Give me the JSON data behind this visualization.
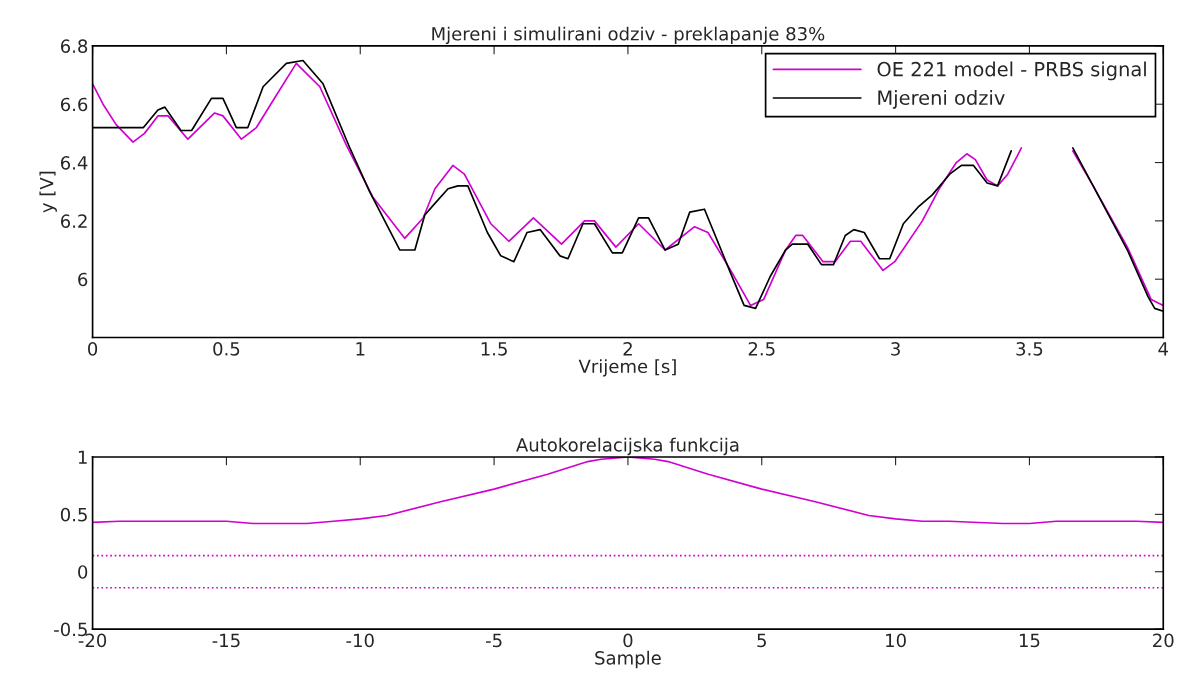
{
  "chart_data": [
    {
      "type": "line",
      "title": "Mjereni i simulirani odziv - preklapanje 83%",
      "xlabel": "Vrijeme [s]",
      "ylabel": "y [V]",
      "xlim": [
        0,
        4
      ],
      "ylim": [
        5.8,
        6.8
      ],
      "xticks": [
        0,
        0.5,
        1,
        1.5,
        2,
        2.5,
        3,
        3.5,
        4
      ],
      "yticks": [
        6,
        6.2,
        6.4,
        6.6,
        6.8
      ],
      "grid": false,
      "legend": "top right",
      "line_style": "solid",
      "series": [
        {
          "name": "OE 221 model - PRBS signal",
          "color": "#d100d1",
          "x": [
            0,
            0.039,
            0.088,
            0.151,
            0.194,
            0.244,
            0.282,
            0.356,
            0.456,
            0.487,
            0.556,
            0.612,
            0.686,
            0.761,
            0.849,
            0.948,
            1.048,
            1.166,
            1.235,
            1.279,
            1.346,
            1.389,
            1.488,
            1.555,
            1.647,
            1.752,
            1.838,
            1.875,
            1.955,
            2.04,
            2.139,
            2.249,
            2.299,
            2.384,
            2.458,
            2.507,
            2.589,
            2.627,
            2.653,
            2.729,
            2.774,
            2.831,
            2.87,
            2.953,
            2.997,
            3.1,
            3.163,
            3.227,
            3.266,
            3.298,
            3.342,
            3.381,
            3.419,
            3.47,
            3.56,
            3.662,
            3.738,
            3.866,
            3.955,
            4.0
          ],
          "values": [
            6.67,
            6.6,
            6.53,
            6.47,
            6.5,
            6.56,
            6.56,
            6.48,
            6.57,
            6.56,
            6.48,
            6.52,
            6.63,
            6.74,
            6.66,
            6.46,
            6.28,
            6.14,
            6.21,
            6.31,
            6.39,
            6.36,
            6.19,
            6.13,
            6.21,
            6.12,
            6.2,
            6.2,
            6.11,
            6.19,
            6.1,
            6.18,
            6.16,
            6.03,
            5.91,
            5.93,
            6.1,
            6.15,
            6.15,
            6.06,
            6.06,
            6.13,
            6.13,
            6.03,
            6.06,
            6.2,
            6.31,
            6.4,
            6.43,
            6.41,
            6.34,
            6.32,
            6.36,
            6.45,
            null,
            6.44,
            6.32,
            6.11,
            5.93,
            5.91
          ]
        },
        {
          "name": "Mjereni odziv",
          "color": "#000000",
          "x": [
            0,
            0.19,
            0.244,
            0.27,
            0.33,
            0.37,
            0.444,
            0.487,
            0.537,
            0.58,
            0.637,
            0.724,
            0.786,
            0.861,
            0.961,
            1.035,
            1.148,
            1.204,
            1.241,
            1.279,
            1.328,
            1.365,
            1.402,
            1.475,
            1.525,
            1.574,
            1.623,
            1.672,
            1.746,
            1.776,
            1.832,
            1.875,
            1.942,
            1.979,
            2.04,
            2.077,
            2.139,
            2.188,
            2.231,
            2.286,
            2.384,
            2.434,
            2.477,
            2.532,
            2.589,
            2.614,
            2.672,
            2.723,
            2.768,
            2.812,
            2.844,
            2.883,
            2.94,
            2.978,
            3.029,
            3.087,
            3.138,
            3.202,
            3.246,
            3.291,
            3.342,
            3.381,
            3.432,
            3.56,
            3.662,
            3.738,
            3.866,
            3.943,
            3.968,
            4.0
          ],
          "values": [
            6.52,
            6.52,
            6.58,
            6.59,
            6.51,
            6.51,
            6.62,
            6.62,
            6.52,
            6.52,
            6.66,
            6.74,
            6.75,
            6.67,
            6.45,
            6.3,
            6.1,
            6.1,
            6.22,
            6.26,
            6.31,
            6.32,
            6.32,
            6.16,
            6.08,
            6.06,
            6.16,
            6.17,
            6.08,
            6.07,
            6.19,
            6.19,
            6.09,
            6.09,
            6.21,
            6.21,
            6.1,
            6.12,
            6.23,
            6.24,
            6.02,
            5.91,
            5.9,
            6.01,
            6.1,
            6.12,
            6.12,
            6.05,
            6.05,
            6.15,
            6.17,
            6.16,
            6.07,
            6.07,
            6.19,
            6.25,
            6.29,
            6.36,
            6.39,
            6.39,
            6.33,
            6.32,
            6.44,
            null,
            6.45,
            6.32,
            6.1,
            5.94,
            5.9,
            5.89
          ]
        }
      ]
    },
    {
      "type": "line",
      "title": "Autokorelacijska funkcija",
      "xlabel": "Sample",
      "xlim": [
        -20,
        20
      ],
      "ylim": [
        -0.5,
        1
      ],
      "xticks": [
        -20,
        -15,
        -10,
        -5,
        0,
        5,
        10,
        15,
        20
      ],
      "yticks": [
        -0.5,
        0,
        0.5,
        1
      ],
      "grid": false,
      "legend": false,
      "line_style": "solid",
      "ref_lines": [
        {
          "axis": "y",
          "value": 0.14,
          "color": "#d100d1",
          "line_style": "dotted"
        },
        {
          "axis": "y",
          "value": -0.14,
          "color": "#d100d1",
          "line_style": "dotted"
        }
      ],
      "series": [
        {
          "color": "#d100d1",
          "x": [
            -20,
            -19,
            -16,
            -15,
            -14,
            -12,
            -11,
            -10,
            -9,
            -7,
            -5,
            -3,
            -1.5,
            -1,
            0,
            1,
            1.5,
            3,
            5,
            7,
            9,
            10,
            11,
            12,
            14,
            15,
            16,
            19,
            20
          ],
          "values": [
            0.43,
            0.44,
            0.44,
            0.44,
            0.42,
            0.42,
            0.44,
            0.46,
            0.49,
            0.61,
            0.72,
            0.85,
            0.96,
            0.98,
            1,
            0.98,
            0.96,
            0.85,
            0.72,
            0.61,
            0.49,
            0.46,
            0.44,
            0.44,
            0.42,
            0.42,
            0.44,
            0.44,
            0.43
          ]
        }
      ]
    }
  ]
}
